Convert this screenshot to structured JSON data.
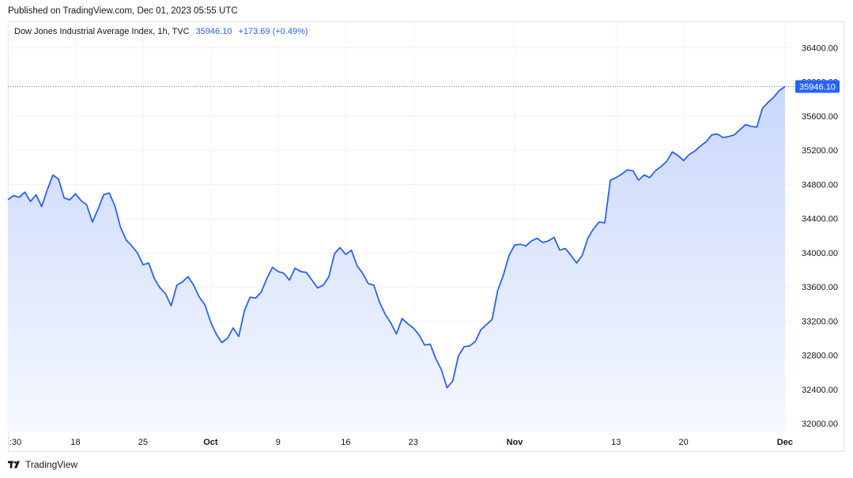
{
  "header": {
    "published": "Published on TradingView.com, Dec 01, 2023 05:55 UTC"
  },
  "legend": {
    "symbol": "Dow Jones Industrial Average Index, 1h, TVC",
    "last": "35946.10",
    "change": "+173.69 (+0.49%)"
  },
  "footer": {
    "brand": "TradingView"
  },
  "colors": {
    "line": "#2962ff",
    "fill_top": "#c9d7fb",
    "fill_bottom": "#f5f8ff",
    "grid": "#f0f3fa",
    "text": "#131722",
    "price_tag": "#2962ff"
  },
  "chart_data": {
    "type": "area",
    "ylim": [
      31900,
      36700
    ],
    "y_ticks": [
      32000,
      32400,
      32800,
      33200,
      33600,
      34000,
      34400,
      34800,
      35200,
      35600,
      36000,
      36400
    ],
    "y_tick_labels": [
      "32000.00",
      "32400.00",
      "32800.00",
      "33200.00",
      "33600.00",
      "34000.00",
      "34400.00",
      "34800.00",
      "35200.00",
      "35600.00",
      "36000.00",
      "36400.00"
    ],
    "x_ticks": [
      {
        "label": ":30",
        "t": 0
      },
      {
        "label": "18",
        "t": 12
      },
      {
        "label": "25",
        "t": 24
      },
      {
        "label": "Oct",
        "t": 36
      },
      {
        "label": "9",
        "t": 48
      },
      {
        "label": "16",
        "t": 60
      },
      {
        "label": "23",
        "t": 72
      },
      {
        "label": "Nov",
        "t": 90
      },
      {
        "label": "13",
        "t": 108
      },
      {
        "label": "20",
        "t": 120
      },
      {
        "label": "Dec",
        "t": 138
      }
    ],
    "last_value": 35946.1,
    "last_label": "35946.10",
    "t_range": [
      0,
      139
    ],
    "values": [
      34620,
      34670,
      34650,
      34710,
      34600,
      34680,
      34540,
      34740,
      34910,
      34860,
      34640,
      34620,
      34690,
      34610,
      34560,
      34360,
      34510,
      34680,
      34700,
      34550,
      34300,
      34150,
      34080,
      34000,
      33860,
      33880,
      33700,
      33590,
      33520,
      33380,
      33620,
      33660,
      33720,
      33620,
      33480,
      33390,
      33190,
      33050,
      32950,
      33000,
      33120,
      33020,
      33320,
      33480,
      33470,
      33540,
      33700,
      33830,
      33780,
      33760,
      33680,
      33820,
      33780,
      33770,
      33680,
      33590,
      33620,
      33720,
      33990,
      34060,
      33980,
      34030,
      33850,
      33760,
      33640,
      33620,
      33420,
      33280,
      33180,
      33050,
      33230,
      33170,
      33120,
      33040,
      32920,
      32930,
      32760,
      32630,
      32420,
      32500,
      32790,
      32900,
      32910,
      32960,
      33100,
      33160,
      33220,
      33560,
      33740,
      33970,
      34090,
      34100,
      34080,
      34140,
      34170,
      34120,
      34140,
      34180,
      34030,
      34050,
      33970,
      33880,
      33970,
      34170,
      34280,
      34360,
      34350,
      34850,
      34880,
      34920,
      34970,
      34960,
      34850,
      34910,
      34880,
      34960,
      35010,
      35070,
      35180,
      35140,
      35080,
      35150,
      35190,
      35250,
      35300,
      35380,
      35390,
      35350,
      35360,
      35380,
      35440,
      35500,
      35480,
      35470,
      35690,
      35760,
      35820,
      35900,
      35946.1
    ]
  }
}
